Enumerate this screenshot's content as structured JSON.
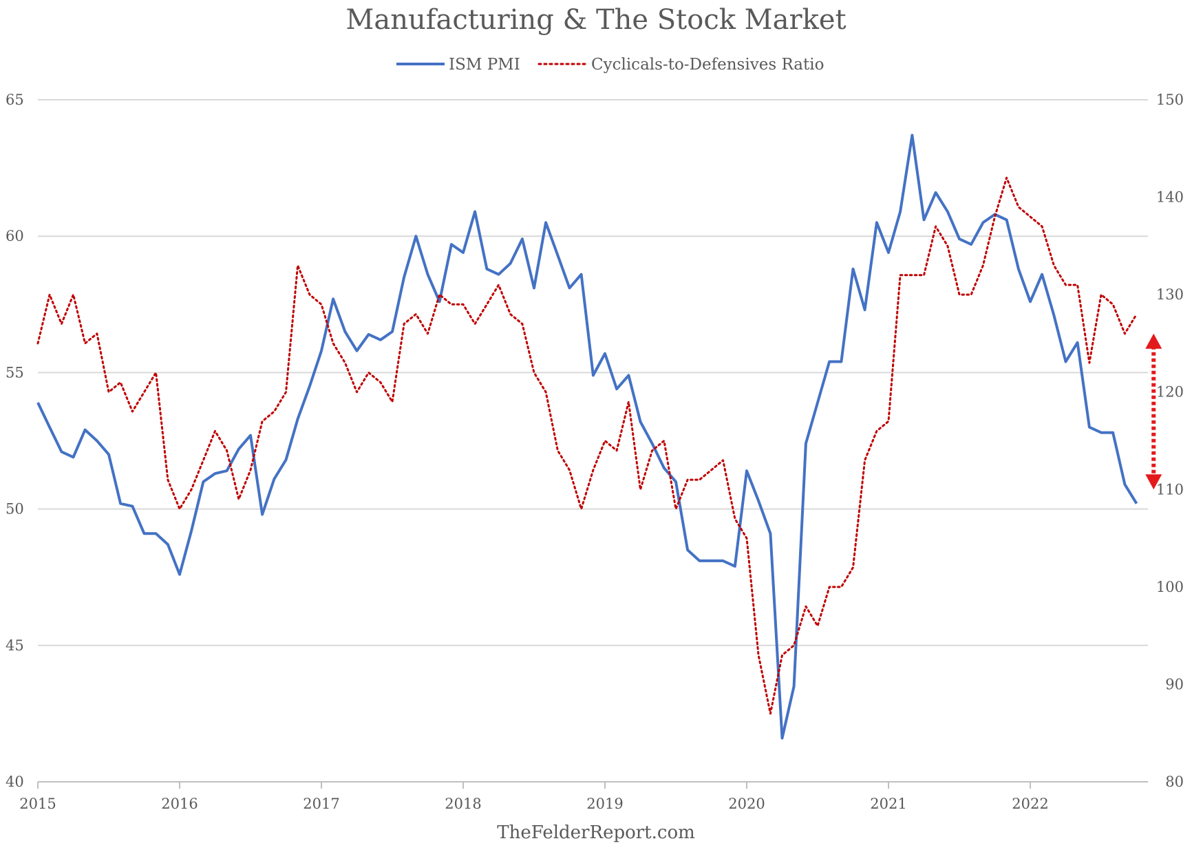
{
  "chart_data": {
    "type": "line",
    "title": "Manufacturing & The Stock Market",
    "source": "TheFelderReport.com",
    "legend_position": "top-center",
    "grid": true,
    "xlim": [
      2015,
      2022.83
    ],
    "x_ticks": [
      "2015",
      "2016",
      "2017",
      "2018",
      "2019",
      "2020",
      "2021",
      "2022"
    ],
    "y_left": {
      "ylim": [
        40,
        65
      ],
      "ticks": [
        "40",
        "45",
        "50",
        "55",
        "60",
        "65"
      ]
    },
    "y_right": {
      "ylim": [
        80,
        150
      ],
      "ticks": [
        "80",
        "90",
        "100",
        "110",
        "120",
        "130",
        "140",
        "150"
      ]
    },
    "colors": {
      "ism": "#4472c4",
      "ratio": "#c00000",
      "arrow": "#e31a1c"
    },
    "annotation": {
      "type": "double-arrow",
      "x": 2022.87,
      "y_right_range": [
        110,
        126
      ]
    },
    "series": [
      {
        "name": "ISM PMI",
        "axis": "left",
        "style": "solid",
        "x": [
          2015.0,
          2015.083,
          2015.167,
          2015.25,
          2015.333,
          2015.417,
          2015.5,
          2015.583,
          2015.667,
          2015.75,
          2015.833,
          2015.917,
          2016.0,
          2016.083,
          2016.167,
          2016.25,
          2016.333,
          2016.417,
          2016.5,
          2016.583,
          2016.667,
          2016.75,
          2016.833,
          2016.917,
          2017.0,
          2017.083,
          2017.167,
          2017.25,
          2017.333,
          2017.417,
          2017.5,
          2017.583,
          2017.667,
          2017.75,
          2017.833,
          2017.917,
          2018.0,
          2018.083,
          2018.167,
          2018.25,
          2018.333,
          2018.417,
          2018.5,
          2018.583,
          2018.667,
          2018.75,
          2018.833,
          2018.917,
          2019.0,
          2019.083,
          2019.167,
          2019.25,
          2019.333,
          2019.417,
          2019.5,
          2019.583,
          2019.667,
          2019.75,
          2019.833,
          2019.917,
          2020.0,
          2020.083,
          2020.167,
          2020.25,
          2020.333,
          2020.417,
          2020.5,
          2020.583,
          2020.667,
          2020.75,
          2020.833,
          2020.917,
          2021.0,
          2021.083,
          2021.167,
          2021.25,
          2021.333,
          2021.417,
          2021.5,
          2021.583,
          2021.667,
          2021.75,
          2021.833,
          2021.917,
          2022.0,
          2022.083,
          2022.167,
          2022.25,
          2022.333,
          2022.417,
          2022.5,
          2022.583,
          2022.667,
          2022.75
        ],
        "y": [
          53.9,
          53.0,
          52.1,
          51.9,
          52.9,
          52.5,
          52.0,
          50.2,
          50.1,
          49.1,
          49.1,
          48.7,
          47.6,
          49.2,
          51.0,
          51.3,
          51.4,
          52.2,
          52.7,
          49.8,
          51.1,
          51.8,
          53.3,
          54.5,
          55.8,
          57.7,
          56.5,
          55.8,
          56.4,
          56.2,
          56.5,
          58.5,
          60.0,
          58.6,
          57.6,
          59.7,
          59.4,
          60.9,
          58.8,
          58.6,
          59.0,
          59.9,
          58.1,
          60.5,
          59.3,
          58.1,
          58.6,
          54.9,
          55.7,
          54.4,
          54.9,
          53.2,
          52.4,
          51.5,
          51.0,
          48.5,
          48.1,
          48.1,
          48.1,
          47.9,
          51.4,
          50.3,
          49.1,
          41.6,
          43.5,
          52.4,
          53.9,
          55.4,
          55.4,
          58.8,
          57.3,
          60.5,
          59.4,
          60.9,
          63.7,
          60.6,
          61.6,
          60.9,
          59.9,
          59.7,
          60.5,
          60.8,
          60.6,
          58.8,
          57.6,
          58.6,
          57.1,
          55.4,
          56.1,
          53.0,
          52.8,
          52.8,
          50.9,
          50.2
        ]
      },
      {
        "name": "Cyclicals-to-Defensives Ratio",
        "axis": "right",
        "style": "dotted",
        "x": [
          2015.0,
          2015.083,
          2015.167,
          2015.25,
          2015.333,
          2015.417,
          2015.5,
          2015.583,
          2015.667,
          2015.75,
          2015.833,
          2015.917,
          2016.0,
          2016.083,
          2016.167,
          2016.25,
          2016.333,
          2016.417,
          2016.5,
          2016.583,
          2016.667,
          2016.75,
          2016.833,
          2016.917,
          2017.0,
          2017.083,
          2017.167,
          2017.25,
          2017.333,
          2017.417,
          2017.5,
          2017.583,
          2017.667,
          2017.75,
          2017.833,
          2017.917,
          2018.0,
          2018.083,
          2018.167,
          2018.25,
          2018.333,
          2018.417,
          2018.5,
          2018.583,
          2018.667,
          2018.75,
          2018.833,
          2018.917,
          2019.0,
          2019.083,
          2019.167,
          2019.25,
          2019.333,
          2019.417,
          2019.5,
          2019.583,
          2019.667,
          2019.75,
          2019.833,
          2019.917,
          2020.0,
          2020.083,
          2020.167,
          2020.25,
          2020.333,
          2020.417,
          2020.5,
          2020.583,
          2020.667,
          2020.75,
          2020.833,
          2020.917,
          2021.0,
          2021.083,
          2021.167,
          2021.25,
          2021.333,
          2021.417,
          2021.5,
          2021.583,
          2021.667,
          2021.75,
          2021.833,
          2021.917,
          2022.0,
          2022.083,
          2022.167,
          2022.25,
          2022.333,
          2022.417,
          2022.5,
          2022.583,
          2022.667,
          2022.75
        ],
        "y": [
          125,
          130,
          127,
          130,
          125,
          126,
          120,
          121,
          118,
          120,
          122,
          111,
          108,
          110,
          113,
          116,
          114,
          109,
          112,
          117,
          118,
          120,
          133,
          130,
          129,
          125,
          123,
          120,
          122,
          121,
          119,
          127,
          128,
          126,
          130,
          129,
          129,
          127,
          129,
          131,
          128,
          127,
          122,
          120,
          114,
          112,
          108,
          112,
          115,
          114,
          119,
          110,
          114,
          115,
          108,
          111,
          111,
          112,
          113,
          107,
          105,
          93,
          87,
          93,
          94,
          98,
          96,
          100,
          100,
          102,
          113,
          116,
          117,
          132,
          132,
          132,
          137,
          135,
          130,
          130,
          133,
          138,
          142,
          139,
          138,
          137,
          133,
          131,
          131,
          123,
          130,
          129,
          126,
          128
        ]
      }
    ]
  }
}
